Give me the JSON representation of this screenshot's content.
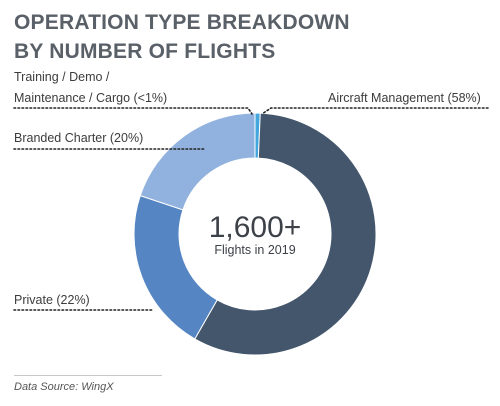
{
  "title_line1": "OPERATION TYPE BREAKDOWN",
  "title_line2": "BY NUMBER OF FLIGHTS",
  "source": "Data Source: WingX",
  "center": {
    "value": "1,600+",
    "caption": "Flights in 2019"
  },
  "labels": {
    "training_line1": "Training / Demo /",
    "training_line2": "Maintenance / Cargo (<1%)",
    "aircraft_management": "Aircraft Management (58%)",
    "branded_charter": "Branded Charter (20%)",
    "private": "Private (22%)"
  },
  "colors": {
    "aircraft_management": "#44566b",
    "private": "#5586c3",
    "branded_charter": "#91b2de",
    "training": "#43a7dd",
    "leader": "#222222"
  },
  "chart_data": {
    "type": "pie",
    "donut": true,
    "title": "OPERATION TYPE BREAKDOWN BY NUMBER OF FLIGHTS",
    "categories": [
      "Aircraft Management",
      "Private",
      "Branded Charter",
      "Training / Demo / Maintenance / Cargo"
    ],
    "values": [
      58,
      22,
      20,
      0.7
    ],
    "value_labels": [
      "58%",
      "22%",
      "20%",
      "<1%"
    ],
    "unit": "%"
  }
}
